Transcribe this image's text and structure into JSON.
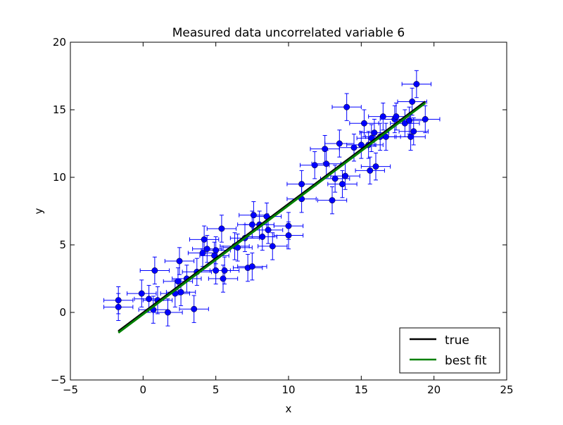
{
  "chart_data": {
    "type": "scatter",
    "title": "Measured data uncorrelated variable 6",
    "xlabel": "x",
    "ylabel": "y",
    "xlim": [
      -5,
      25
    ],
    "ylim": [
      -5,
      20
    ],
    "x_ticks": [
      -5,
      0,
      5,
      10,
      15,
      20,
      25
    ],
    "y_ticks": [
      -5,
      0,
      5,
      10,
      15,
      20
    ],
    "grid": false,
    "legend_position": "lower-right",
    "colors": {
      "points": "#0000ff",
      "true_line": "#000000",
      "fit_line": "#008000"
    },
    "series": [
      {
        "kind": "errorbar-points",
        "x_err": 1.0,
        "y_err": 1.0,
        "points": [
          [
            -1.7,
            0.9
          ],
          [
            -1.7,
            0.4
          ],
          [
            -0.1,
            1.4
          ],
          [
            0.4,
            1.0
          ],
          [
            0.7,
            0.2
          ],
          [
            0.8,
            3.1
          ],
          [
            1.0,
            0.9
          ],
          [
            1.7,
            0.0
          ],
          [
            2.2,
            1.4
          ],
          [
            2.4,
            2.3
          ],
          [
            2.5,
            3.8
          ],
          [
            2.6,
            1.5
          ],
          [
            3.0,
            2.5
          ],
          [
            3.5,
            0.25
          ],
          [
            3.7,
            3.0
          ],
          [
            4.1,
            4.4
          ],
          [
            4.2,
            5.4
          ],
          [
            4.4,
            4.7
          ],
          [
            4.9,
            4.2
          ],
          [
            5.0,
            4.6
          ],
          [
            5.0,
            3.1
          ],
          [
            5.4,
            6.2
          ],
          [
            5.5,
            2.5
          ],
          [
            5.6,
            3.1
          ],
          [
            6.3,
            4.9
          ],
          [
            6.5,
            4.8
          ],
          [
            7.0,
            5.5
          ],
          [
            7.2,
            3.3
          ],
          [
            7.5,
            3.4
          ],
          [
            7.5,
            6.5
          ],
          [
            7.6,
            7.2
          ],
          [
            8.0,
            6.5
          ],
          [
            8.2,
            5.6
          ],
          [
            8.5,
            7.1
          ],
          [
            8.6,
            6.1
          ],
          [
            8.9,
            4.9
          ],
          [
            10.0,
            6.4
          ],
          [
            10.0,
            5.7
          ],
          [
            10.9,
            9.5
          ],
          [
            10.9,
            8.4
          ],
          [
            11.8,
            10.9
          ],
          [
            12.5,
            12.1
          ],
          [
            12.6,
            11.0
          ],
          [
            13.0,
            8.3
          ],
          [
            13.2,
            9.9
          ],
          [
            13.5,
            12.5
          ],
          [
            13.7,
            9.5
          ],
          [
            13.9,
            10.1
          ],
          [
            14.0,
            15.2
          ],
          [
            14.5,
            12.2
          ],
          [
            15.0,
            12.4
          ],
          [
            15.2,
            14.0
          ],
          [
            15.5,
            12.4
          ],
          [
            15.6,
            10.5
          ],
          [
            15.7,
            12.9
          ],
          [
            15.9,
            13.3
          ],
          [
            16.0,
            10.8
          ],
          [
            16.3,
            13.0
          ],
          [
            16.5,
            14.5
          ],
          [
            16.7,
            13.0
          ],
          [
            17.3,
            14.3
          ],
          [
            17.4,
            14.5
          ],
          [
            18.0,
            14.0
          ],
          [
            18.3,
            14.2
          ],
          [
            18.4,
            13.0
          ],
          [
            18.5,
            15.6
          ],
          [
            18.6,
            13.4
          ],
          [
            18.8,
            16.9
          ],
          [
            19.4,
            14.3
          ]
        ]
      },
      {
        "name": "true",
        "kind": "line",
        "x": [
          -1.7,
          19.4
        ],
        "y": [
          -1.4,
          15.6
        ]
      },
      {
        "name": "best fit",
        "kind": "line",
        "x": [
          -1.7,
          19.4
        ],
        "y": [
          -1.5,
          15.5
        ]
      }
    ]
  }
}
